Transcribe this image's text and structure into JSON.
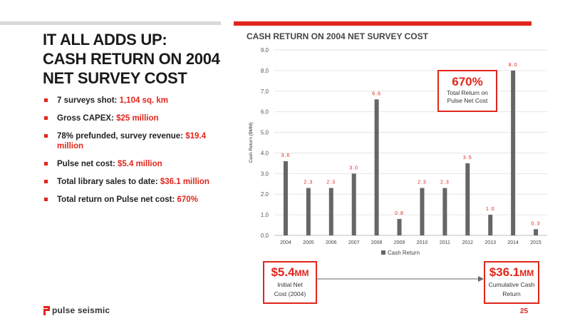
{
  "slide": {
    "title_line1": "IT ALL ADDS UP:",
    "title_line2": "CASH RETURN ON 2004",
    "title_line3": "NET SURVEY COST",
    "bullets": [
      {
        "text": "7 surveys shot: ",
        "highlight": "1,104 sq. km"
      },
      {
        "text": "Gross CAPEX: ",
        "highlight": "$25 million"
      },
      {
        "text": "78% prefunded, survey revenue: ",
        "highlight": "$19.4 million"
      },
      {
        "text": "Pulse net cost: ",
        "highlight": "$5.4 million"
      },
      {
        "text": "Total library sales to date: ",
        "highlight": "$36.1 million"
      },
      {
        "text": "Total return on Pulse net cost: ",
        "highlight": "670%"
      }
    ],
    "page_number": "25",
    "logo_text": "pulse seismic"
  },
  "callout": {
    "value": "670%",
    "label_line1": "Total Return on",
    "label_line2": "Pulse Net Cost"
  },
  "box_left": {
    "value": "$5.4",
    "unit": "MM",
    "label_line1": "Initial Net",
    "label_line2": "Cost (2004)"
  },
  "box_right": {
    "value": "$36.1",
    "unit": "MM",
    "label_line1": "Cumulative Cash",
    "label_line2": "Return"
  },
  "colors": {
    "accent": "#e0261c",
    "bar": "#666666",
    "grid": "#e6e6e6"
  },
  "chart_data": {
    "type": "bar",
    "title": "CASH RETURN ON 2004 NET SURVEY COST",
    "ylabel": "Cash Return ($MM)",
    "xlabel": "",
    "categories": [
      "2004",
      "2005",
      "2006",
      "2007",
      "2008",
      "2009",
      "2010",
      "2011",
      "2012",
      "2013",
      "2014",
      "2015"
    ],
    "series": [
      {
        "name": "Cash Return",
        "values": [
          3.6,
          2.3,
          2.3,
          3.0,
          6.6,
          0.8,
          2.3,
          2.3,
          3.5,
          1.0,
          8.0,
          0.3
        ]
      }
    ],
    "data_labels": [
      "3.6",
      "2.3",
      "2.3",
      "3.0",
      "6.6",
      "0.8",
      "2.3",
      "2.3",
      "3.5",
      "1.0",
      "8.0",
      "0.3"
    ],
    "ylim": [
      0,
      9
    ],
    "yticks": [
      "0.0",
      "1.0",
      "2.0",
      "3.0",
      "4.0",
      "5.0",
      "6.0",
      "7.0",
      "8.0",
      "9.0"
    ],
    "grid": true,
    "legend": "bottom"
  }
}
